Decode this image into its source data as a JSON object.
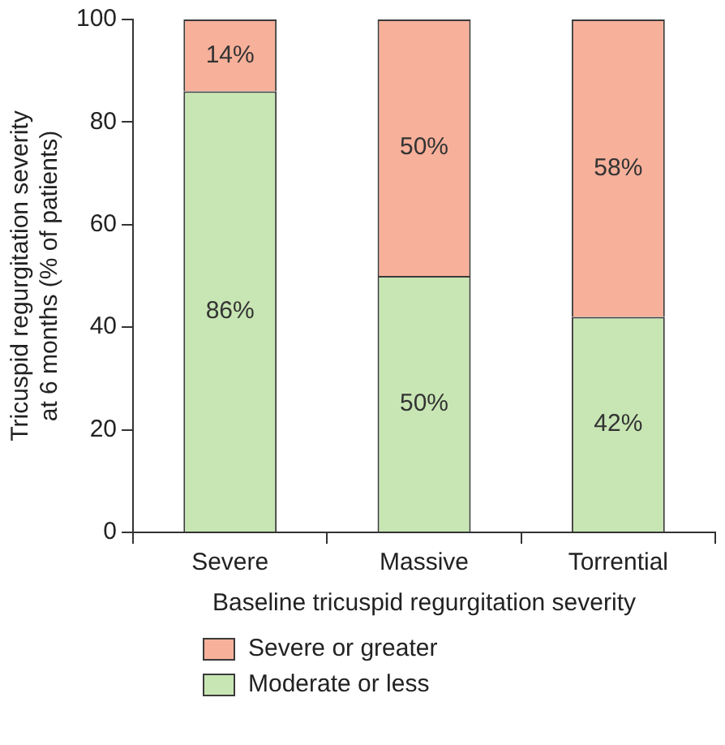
{
  "chart_data": {
    "type": "bar",
    "stacked": true,
    "xlabel": "Baseline tricuspid regurgitation severity",
    "ylabel": "Tricuspid regurgitation severity at 6 months (% of patients)",
    "categories": [
      "Severe",
      "Massive",
      "Torrential"
    ],
    "series": [
      {
        "name": "Moderate or less",
        "color": "#c8e6b4",
        "values": [
          86,
          50,
          42
        ],
        "value_labels": [
          "86%",
          "50%",
          "42%"
        ]
      },
      {
        "name": "Severe or greater",
        "color": "#f7b09a",
        "values": [
          14,
          50,
          58
        ],
        "value_labels": [
          "14%",
          "50%",
          "58%"
        ]
      }
    ],
    "ylim": [
      0,
      100
    ],
    "yticks": [
      0,
      20,
      40,
      60,
      80,
      100
    ],
    "grid": false,
    "legend": "bottom"
  }
}
